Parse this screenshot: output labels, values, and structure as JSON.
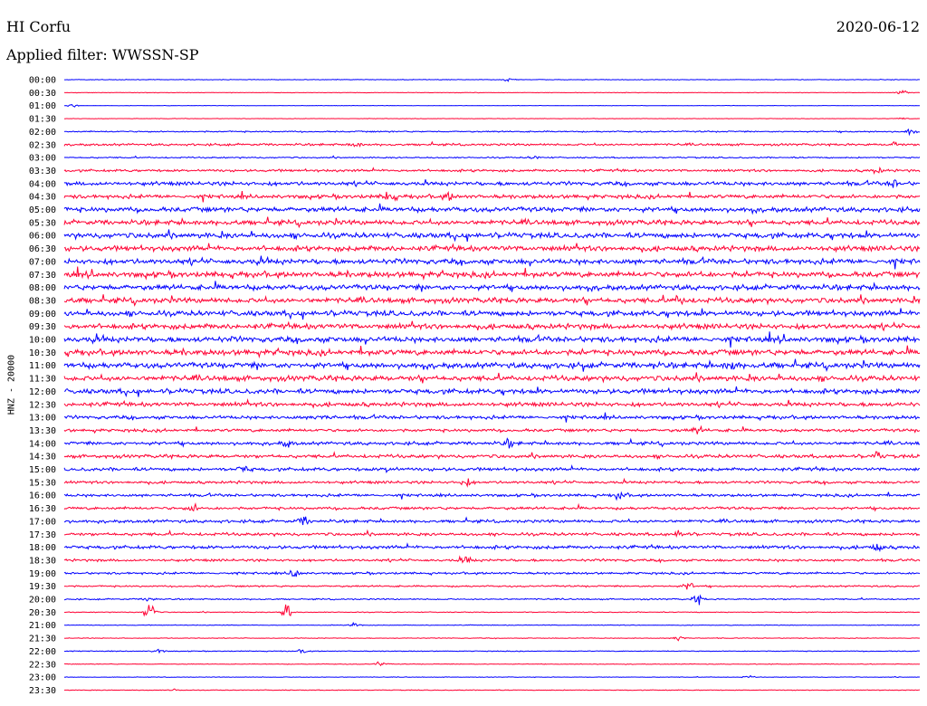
{
  "header": {
    "station": "HI Corfu",
    "date": "2020-06-12",
    "filter": "Applied filter: WWSSN-SP"
  },
  "colors": {
    "blue": "#0000ff",
    "red": "#ff0033"
  },
  "chart_data": {
    "type": "line",
    "title": "HI Corfu",
    "ylabel": "HNZ - 20000",
    "filter": "WWSSN-SP",
    "date": "2020-06-12",
    "trace_minutes": 30,
    "color_cycle": [
      "blue",
      "red"
    ],
    "rows": [
      {
        "label": "00:00",
        "activity": 0.04,
        "bursts": [
          [
            0.52,
            0.25
          ]
        ]
      },
      {
        "label": "00:30",
        "activity": 0.04,
        "bursts": [
          [
            0.98,
            0.35
          ]
        ]
      },
      {
        "label": "01:00",
        "activity": 0.03,
        "bursts": [
          [
            0.01,
            0.2
          ]
        ]
      },
      {
        "label": "01:30",
        "activity": 0.03,
        "bursts": [
          [
            0.98,
            0.15
          ]
        ]
      },
      {
        "label": "02:00",
        "activity": 0.1,
        "bursts": [
          [
            0.99,
            0.5
          ]
        ]
      },
      {
        "label": "02:30",
        "activity": 0.16,
        "bursts": [
          [
            0.34,
            0.4
          ],
          [
            0.97,
            0.4
          ]
        ]
      },
      {
        "label": "03:00",
        "activity": 0.1,
        "bursts": [
          [
            0.55,
            0.2
          ]
        ]
      },
      {
        "label": "03:30",
        "activity": 0.18,
        "bursts": [
          [
            0.95,
            0.4
          ]
        ]
      },
      {
        "label": "04:00",
        "activity": 0.28,
        "bursts": [
          [
            0.97,
            0.6
          ]
        ]
      },
      {
        "label": "04:30",
        "activity": 0.28,
        "bursts": [
          [
            0.38,
            1.0
          ],
          [
            0.45,
            0.5
          ]
        ]
      },
      {
        "label": "05:00",
        "activity": 0.35,
        "bursts": []
      },
      {
        "label": "05:30",
        "activity": 0.35,
        "bursts": []
      },
      {
        "label": "06:00",
        "activity": 0.38,
        "bursts": []
      },
      {
        "label": "06:30",
        "activity": 0.38,
        "bursts": []
      },
      {
        "label": "07:00",
        "activity": 0.38,
        "bursts": []
      },
      {
        "label": "07:30",
        "activity": 0.4,
        "bursts": []
      },
      {
        "label": "08:00",
        "activity": 0.38,
        "bursts": []
      },
      {
        "label": "08:30",
        "activity": 0.38,
        "bursts": [
          [
            0.72,
            0.6
          ]
        ]
      },
      {
        "label": "09:00",
        "activity": 0.38,
        "bursts": []
      },
      {
        "label": "09:30",
        "activity": 0.38,
        "bursts": []
      },
      {
        "label": "10:00",
        "activity": 0.4,
        "bursts": []
      },
      {
        "label": "10:30",
        "activity": 0.4,
        "bursts": []
      },
      {
        "label": "11:00",
        "activity": 0.4,
        "bursts": [
          [
            0.78,
            0.6
          ]
        ]
      },
      {
        "label": "11:30",
        "activity": 0.38,
        "bursts": []
      },
      {
        "label": "12:00",
        "activity": 0.35,
        "bursts": []
      },
      {
        "label": "12:30",
        "activity": 0.3,
        "bursts": []
      },
      {
        "label": "13:00",
        "activity": 0.25,
        "bursts": [
          [
            0.3,
            0.5
          ]
        ]
      },
      {
        "label": "13:30",
        "activity": 0.22,
        "bursts": [
          [
            0.74,
            0.5
          ]
        ]
      },
      {
        "label": "14:00",
        "activity": 0.24,
        "bursts": [
          [
            0.26,
            0.5
          ],
          [
            0.52,
            0.5
          ]
        ]
      },
      {
        "label": "14:30",
        "activity": 0.25,
        "bursts": [
          [
            0.95,
            0.6
          ]
        ]
      },
      {
        "label": "15:00",
        "activity": 0.24,
        "bursts": [
          [
            0.21,
            0.5
          ],
          [
            0.38,
            0.5
          ]
        ]
      },
      {
        "label": "15:30",
        "activity": 0.2,
        "bursts": [
          [
            0.47,
            0.6
          ]
        ]
      },
      {
        "label": "16:00",
        "activity": 0.2,
        "bursts": [
          [
            0.65,
            0.6
          ]
        ]
      },
      {
        "label": "16:30",
        "activity": 0.2,
        "bursts": [
          [
            0.15,
            0.6
          ]
        ]
      },
      {
        "label": "17:00",
        "activity": 0.22,
        "bursts": [
          [
            0.28,
            0.6
          ]
        ]
      },
      {
        "label": "17:30",
        "activity": 0.22,
        "bursts": [
          [
            0.72,
            0.6
          ]
        ]
      },
      {
        "label": "18:00",
        "activity": 0.24,
        "bursts": [
          [
            0.95,
            0.6
          ]
        ]
      },
      {
        "label": "18:30",
        "activity": 0.18,
        "bursts": [
          [
            0.47,
            0.6
          ]
        ]
      },
      {
        "label": "19:00",
        "activity": 0.16,
        "bursts": [
          [
            0.27,
            0.7
          ]
        ]
      },
      {
        "label": "19:30",
        "activity": 0.12,
        "bursts": [
          [
            0.73,
            0.6
          ]
        ]
      },
      {
        "label": "20:00",
        "activity": 0.1,
        "bursts": [
          [
            0.74,
            0.7
          ],
          [
            0.1,
            0.4
          ]
        ]
      },
      {
        "label": "20:30",
        "activity": 0.06,
        "bursts": [
          [
            0.1,
            1.6
          ],
          [
            0.26,
            1.6
          ]
        ]
      },
      {
        "label": "21:00",
        "activity": 0.05,
        "bursts": [
          [
            0.34,
            0.4
          ]
        ]
      },
      {
        "label": "21:30",
        "activity": 0.05,
        "bursts": [
          [
            0.72,
            0.6
          ]
        ]
      },
      {
        "label": "22:00",
        "activity": 0.06,
        "bursts": [
          [
            0.11,
            0.4
          ],
          [
            0.28,
            0.3
          ]
        ]
      },
      {
        "label": "22:30",
        "activity": 0.05,
        "bursts": [
          [
            0.37,
            0.4
          ]
        ]
      },
      {
        "label": "23:00",
        "activity": 0.04,
        "bursts": [
          [
            0.8,
            0.2
          ]
        ]
      },
      {
        "label": "23:30",
        "activity": 0.05,
        "bursts": [
          [
            0.13,
            0.2
          ]
        ]
      }
    ]
  }
}
